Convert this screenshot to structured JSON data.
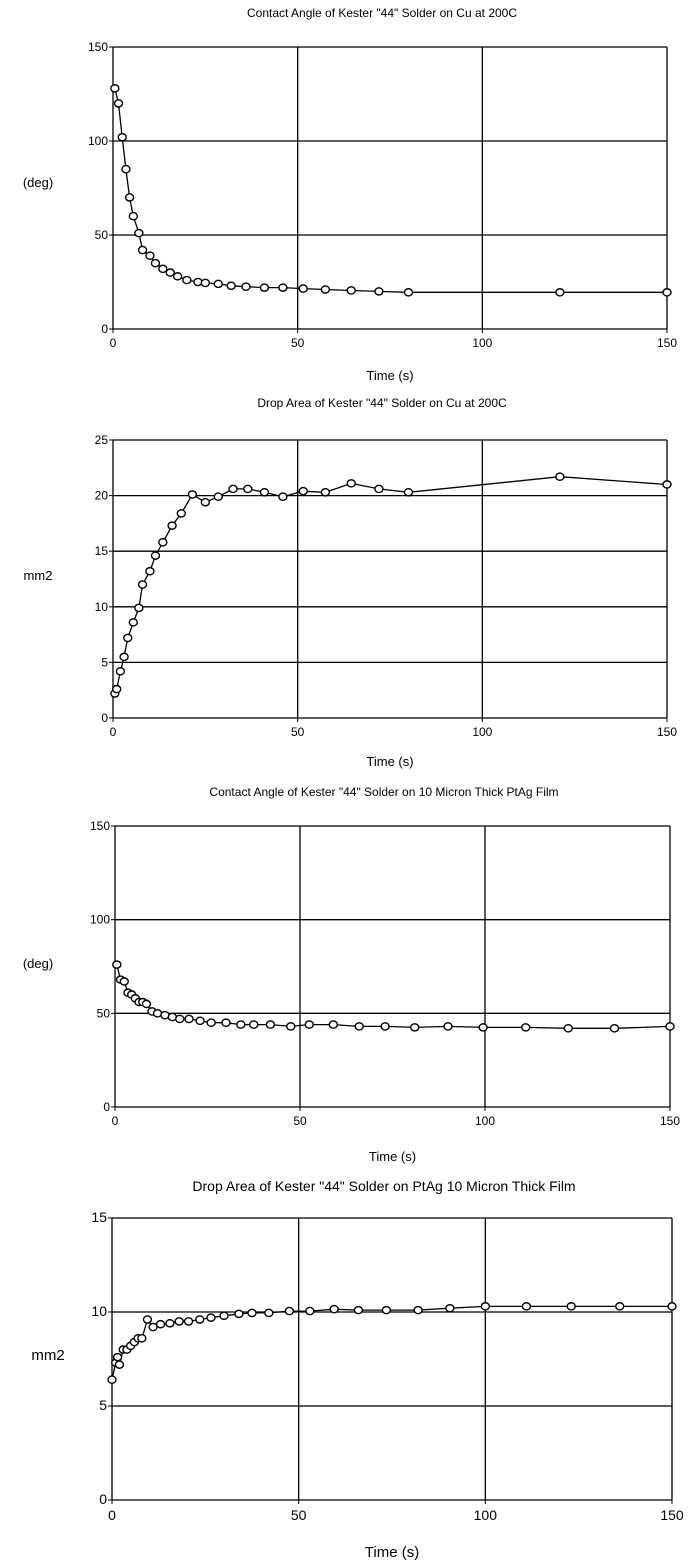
{
  "chart_data": [
    {
      "type": "line",
      "title": "Contact Angle of Kester \"44\" Solder on Cu at 200C",
      "xlabel": "Time (s)",
      "ylabel": "(deg)",
      "xlim": [
        0,
        150
      ],
      "ylim": [
        0,
        150
      ],
      "xticks": [
        0,
        50,
        100,
        150
      ],
      "yticks": [
        0,
        50,
        100,
        150
      ],
      "grid": true,
      "marker": "circle",
      "series": [
        {
          "x": [
            0.5,
            1.5,
            2.5,
            3.5,
            4.5,
            5.5,
            7,
            8,
            10,
            11.5,
            13.5,
            15.5,
            17.5,
            20,
            23,
            25,
            28.5,
            32,
            36,
            41,
            46,
            51.5,
            57.5,
            64.5,
            72,
            80,
            121,
            150
          ],
          "y": [
            128,
            120,
            102,
            85,
            70,
            60,
            51,
            42,
            39,
            35,
            32,
            30,
            28,
            26,
            25,
            24.5,
            24,
            23,
            22.5,
            22,
            22,
            21.5,
            21,
            20.5,
            20,
            19.5,
            19.5,
            19.5
          ]
        }
      ]
    },
    {
      "type": "line",
      "title": "Drop Area of Kester \"44\" Solder on Cu at 200C",
      "xlabel": "Time (s)",
      "ylabel": "mm2",
      "xlim": [
        0,
        150
      ],
      "ylim": [
        0,
        25
      ],
      "xticks": [
        0,
        50,
        100,
        150
      ],
      "yticks": [
        0,
        5,
        10,
        15,
        20,
        25
      ],
      "grid": true,
      "marker": "circle",
      "series": [
        {
          "x": [
            0.5,
            1,
            2,
            3,
            4,
            5.5,
            7,
            8,
            10,
            11.5,
            13.5,
            16,
            18.5,
            21.5,
            25,
            28.5,
            32.5,
            36.5,
            41,
            46,
            51.5,
            57.5,
            64.5,
            72,
            80,
            121,
            150
          ],
          "y": [
            2.2,
            2.6,
            4.2,
            5.5,
            7.2,
            8.6,
            9.9,
            12,
            13.2,
            14.6,
            15.8,
            17.3,
            18.4,
            20.1,
            19.4,
            19.9,
            20.6,
            20.6,
            20.3,
            19.9,
            20.4,
            20.3,
            21.1,
            20.6,
            20.3,
            21.7,
            21
          ]
        }
      ]
    },
    {
      "type": "line",
      "title": "Contact Angle of Kester \"44\" Solder on 10 Micron Thick PtAg Film",
      "xlabel": "Time (s)",
      "ylabel": "(deg)",
      "xlim": [
        0,
        150
      ],
      "ylim": [
        0,
        150
      ],
      "xticks": [
        0,
        50,
        100,
        150
      ],
      "yticks": [
        0,
        50,
        100,
        150
      ],
      "grid": true,
      "marker": "circle",
      "series": [
        {
          "x": [
            0.5,
            1.5,
            2.5,
            3.5,
            4.5,
            5.5,
            6.5,
            7.5,
            8.5,
            10,
            11.5,
            13.5,
            15.5,
            17.5,
            20,
            23,
            26,
            30,
            34,
            37.5,
            42,
            47.5,
            52.5,
            59,
            66,
            73,
            81,
            90,
            99.5,
            111,
            122.5,
            135,
            150
          ],
          "y": [
            76,
            68,
            67,
            61,
            60,
            58,
            56,
            56,
            55,
            51,
            50,
            49,
            48,
            47,
            47,
            46,
            45,
            45,
            44,
            44,
            44,
            43,
            44,
            44,
            43,
            43,
            42.5,
            43,
            42.5,
            42.5,
            42,
            42,
            43
          ]
        }
      ]
    },
    {
      "type": "line",
      "title": "Drop Area of Kester \"44\" Solder on PtAg 10 Micron Thick Film",
      "xlabel": "Time (s)",
      "ylabel": "mm2",
      "xlim": [
        0,
        150
      ],
      "ylim": [
        0,
        15
      ],
      "xticks": [
        0,
        50,
        100,
        150
      ],
      "yticks": [
        0,
        5,
        10,
        15
      ],
      "grid": true,
      "marker": "circle",
      "series": [
        {
          "x": [
            0,
            1,
            1.5,
            2,
            3,
            4,
            5,
            6,
            7,
            8,
            9.5,
            11,
            13,
            15.5,
            18,
            20.5,
            23.5,
            26.5,
            30,
            34,
            37.5,
            42,
            47.5,
            53,
            59.5,
            66,
            73.5,
            82,
            90.5,
            100,
            111,
            123,
            136,
            150
          ],
          "y": [
            6.4,
            7.3,
            7.6,
            7.2,
            8,
            8,
            8.2,
            8.4,
            8.6,
            8.6,
            9.6,
            9.2,
            9.35,
            9.4,
            9.5,
            9.5,
            9.6,
            9.7,
            9.8,
            9.9,
            9.95,
            9.95,
            10.05,
            10.05,
            10.15,
            10.1,
            10.1,
            10.1,
            10.2,
            10.3,
            10.3,
            10.3,
            10.3,
            10.3
          ]
        }
      ]
    }
  ]
}
